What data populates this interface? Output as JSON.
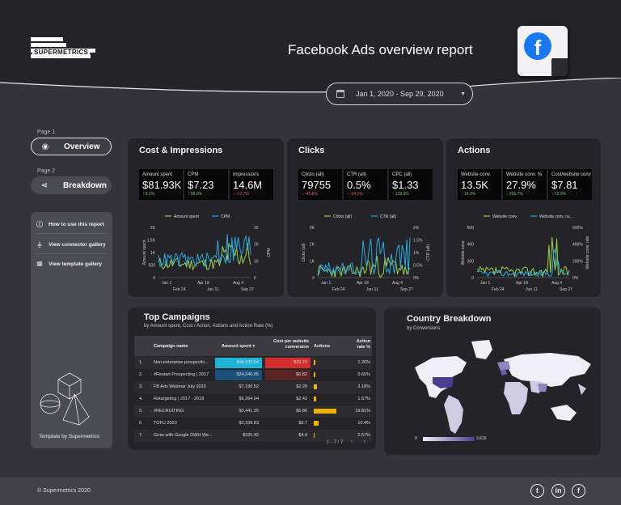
{
  "header": {
    "brand": "SUPERMETRICS",
    "title": "Facebook Ads overview report",
    "date_range": "Jan 1, 2020 - Sep 29, 2020",
    "fb_letter": "f",
    "colors": {
      "header_bg": "#242428",
      "page_bg": "#333339",
      "facebook_blue": "#1877f2"
    }
  },
  "nav": {
    "page1_label": "Page 1",
    "overview": "Overview",
    "page2_label": "Page 2",
    "breakdown": "Breakdown",
    "icons": [
      "eye-icon",
      "share-icon"
    ]
  },
  "sidebar": {
    "links": [
      "How to use this report",
      "View connector gallery",
      "View template gallery"
    ],
    "footer": "Template by Supermetrics",
    "icons": [
      "info-icon",
      "plug-icon",
      "grid-icon"
    ]
  },
  "cost": {
    "title": "Cost & Impressions",
    "kpis": [
      {
        "label": "Amount spent",
        "value": "$81.93K",
        "delta": "↑ 5.1%",
        "dir": "up"
      },
      {
        "label": "CPM",
        "value": "$7.23",
        "delta": "↑ 58.0%",
        "dir": "up"
      },
      {
        "label": "Impressions",
        "value": "14.6M",
        "delta": "↓ -17.7%",
        "dir": "down"
      }
    ],
    "chart": {
      "legend": [
        "Amount spent",
        "CPM"
      ],
      "yleft": [
        "2K",
        "1.5K",
        "1K",
        "500",
        "0"
      ],
      "yright": [
        "30",
        "20",
        "10",
        "0"
      ],
      "xtop": [
        "Jan 1",
        "Apr 18",
        "Aug 4"
      ],
      "xbot": [
        "Feb 24",
        "Jun 11",
        "Sep 27"
      ],
      "ylabel_left": "Amount spent",
      "ylabel_right": "CPM"
    }
  },
  "clicks": {
    "title": "Clicks",
    "kpis": [
      {
        "label": "Clicks (all)",
        "value": "79755",
        "delta": "↓ -45.8%",
        "dir": "down"
      },
      {
        "label": "CTR (all)",
        "value": "0.5%",
        "delta": "↓ -34.1%",
        "dir": "down"
      },
      {
        "label": "CPC (all)",
        "value": "$1.33",
        "delta": "↑ 139.9%",
        "dir": "up"
      }
    ],
    "chart": {
      "legend": [
        "Clicks (all)",
        "CTR (all)"
      ],
      "yleft": [
        "3K",
        "2K",
        "1K",
        "0"
      ],
      "yright": [
        "2%",
        "1.5%",
        "1%",
        "0.5%",
        "0%"
      ],
      "xtop": [
        "Jan 1",
        "Apr 18",
        "Aug 4"
      ],
      "xbot": [
        "Feb 24",
        "Jun 11",
        "Sep 27"
      ],
      "ylabel_left": "Clicks (all)",
      "ylabel_right": "CTR (all)"
    }
  },
  "actions": {
    "title": "Actions",
    "kpis": [
      {
        "label": "Website conv.",
        "value": "13.5K",
        "delta": "↑ 14.3%",
        "dir": "up"
      },
      {
        "label": "Website conv. %",
        "value": "27.9%",
        "delta": "↑ 206.7%",
        "dir": "up"
      },
      {
        "label": "Cost/website conv",
        "value": "$7.81",
        "delta": "↑ 13.9%",
        "dir": "up"
      }
    ],
    "chart": {
      "legend": [
        "Website conv.",
        "Website conv. ra..."
      ],
      "yleft": [
        "600",
        "400",
        "200",
        "0"
      ],
      "yright": [
        "600%",
        "400%",
        "200%",
        "0%"
      ],
      "xtop": [
        "Jan 1",
        "Apr 18",
        "Aug 4"
      ],
      "xbot": [
        "Feb 24",
        "Jun 11",
        "Sep 27"
      ],
      "ylabel_left": "Website conv.",
      "ylabel_right": "Website conv. rate"
    }
  },
  "chart_colors": {
    "green": "#9bd04a",
    "blue": "#2aa8e0"
  },
  "campaigns": {
    "title": "Top Campaigns",
    "subtitle": "by Amount spent, Cost / Action, Actions and Action Rate (%)",
    "columns": [
      "Campaign name",
      "Amount spent ▾",
      "Cost per website conversion",
      "Actions",
      "Action rate %"
    ],
    "rows": [
      {
        "n": "1.",
        "name": "Non-enterprise prospectin...",
        "spent": "$38,929.54",
        "cpa": "$29.74",
        "actions": 0.06,
        "rate": "1.26%"
      },
      {
        "n": "2.",
        "name": "#Restart Prospecting | 2017",
        "spent": "$24,340.05",
        "cpa": "$6.82",
        "actions": 0.08,
        "rate": "0.65%"
      },
      {
        "n": "3.",
        "name": "FB Ads Webinar July 2020",
        "spent": "$7,190.52",
        "cpa": "$2.28",
        "actions": 0.13,
        "rate": "3.18%"
      },
      {
        "n": "4.",
        "name": "Retargeting | 2017 - 2018",
        "spent": "$6,364.04",
        "cpa": "$2.42",
        "actions": 0.1,
        "rate": "1.57%"
      },
      {
        "n": "5.",
        "name": "#RECRUITING",
        "spent": "$2,441.35",
        "cpa": "$5.86",
        "actions": 1.0,
        "rate": "19.81%"
      },
      {
        "n": "6.",
        "name": "TOFU 2020",
        "spent": "$2,339.83",
        "cpa": "$6.7",
        "actions": 0.2,
        "rate": "10.4%"
      },
      {
        "n": "7.",
        "name": "Grow with Google DWH We...",
        "spent": "$325.42",
        "cpa": "$4.4",
        "actions": 0.02,
        "rate": "2.57%"
      }
    ],
    "pagination": "1 - 7 / 7"
  },
  "country": {
    "title": "Country Breakdown",
    "subtitle": "by Conversions",
    "legend_min": "0",
    "legend_max": "3,615"
  },
  "footer": {
    "copyright": "© Supermetrics 2020",
    "socials": [
      "twitter-icon",
      "linkedin-icon",
      "facebook-icon"
    ]
  }
}
